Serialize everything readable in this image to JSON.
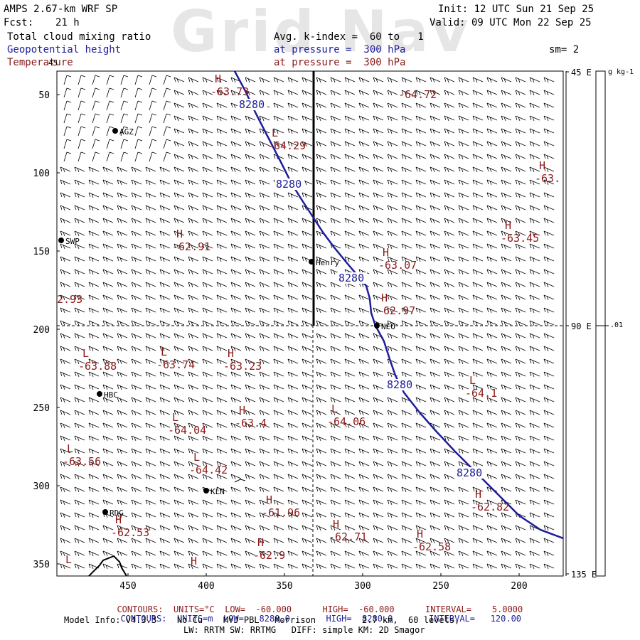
{
  "header": {
    "watermark": "Grid Nav",
    "model": "AMPS 2.67-km WRF SP",
    "init": "Init: 12 UTC Sun 21 Sep 25",
    "fcst_label": "Fcst:",
    "fcst_value": "21 h",
    "valid": "Valid: 09 UTC Mon 22 Sep 25",
    "field1": "Total cloud mixing ratio",
    "avg": "Avg. k-index =  60 to   1",
    "field2": "Geopotential height",
    "pressure1": "at pressure =  300 hPa",
    "sm": "sm= 2",
    "field3": "Temperature",
    "pressure2": "at pressure =  300 hPa"
  },
  "axes": {
    "y_ticks": [
      {
        "label": "50",
        "v": 50
      },
      {
        "label": "100",
        "v": 100
      },
      {
        "label": "150",
        "v": 150
      },
      {
        "label": "200",
        "v": 200
      },
      {
        "label": "250",
        "v": 250
      },
      {
        "label": "300",
        "v": 300
      },
      {
        "label": "350",
        "v": 350
      }
    ],
    "x_ticks": [
      {
        "label": "450",
        "v": 450
      },
      {
        "label": "400",
        "v": 400
      },
      {
        "label": "350",
        "v": 350
      },
      {
        "label": "300",
        "v": 300
      },
      {
        "label": "250",
        "v": 250
      },
      {
        "label": "200",
        "v": 200
      }
    ],
    "right_labels": [
      "45 E",
      "90 E",
      "135 E"
    ],
    "colorbar_unit": "g kg-1",
    "colorbar_tick": ".01",
    "corner_label": "45"
  },
  "stations": [
    "AGZ",
    "SWP",
    "Henry",
    "NEO",
    "HBC",
    "KLN",
    "RDG"
  ],
  "temp_labels": [
    {
      "hl": "H",
      "val": "-63.73"
    },
    {
      "hl": "",
      "val": "-64.72"
    },
    {
      "hl": "L",
      "val": "-64.29"
    },
    {
      "hl": "H",
      "val": "-63."
    },
    {
      "hl": "H",
      "val": "-63.45"
    },
    {
      "hl": "H",
      "val": "-62.91"
    },
    {
      "hl": "H",
      "val": "-63.07"
    },
    {
      "hl": "",
      "val": "2.93"
    },
    {
      "hl": "H",
      "val": "-62.97"
    },
    {
      "hl": "L",
      "val": "-63.88"
    },
    {
      "hl": "L",
      "val": "-63.74"
    },
    {
      "hl": "H",
      "val": "-63.23"
    },
    {
      "hl": "L",
      "val": "-64.1"
    },
    {
      "hl": "L",
      "val": "-64.04"
    },
    {
      "hl": "H",
      "val": "-63.4"
    },
    {
      "hl": "L",
      "val": "-64.06"
    },
    {
      "hl": "L",
      "val": "-63.56"
    },
    {
      "hl": "L",
      "val": "-64.42"
    },
    {
      "hl": "H",
      "val": "-62.82"
    },
    {
      "hl": "H",
      "val": "-61.96"
    },
    {
      "hl": "H",
      "val": "-62.53"
    },
    {
      "hl": "H",
      "val": "-62.71"
    },
    {
      "hl": "H",
      "val": "-62.58"
    },
    {
      "hl": "H",
      "val": "-62.9"
    },
    {
      "hl": "L",
      "val": ""
    },
    {
      "hl": "H",
      "val": ""
    }
  ],
  "height_labels": [
    "8280",
    "8280",
    "8280",
    "8280",
    "8280"
  ],
  "footer": {
    "contours_red": {
      "label": "CONTOURS:",
      "units": "UNITS=°C",
      "low": "LOW=  -60.000",
      "high": "HIGH=  -60.000",
      "interval": "INTERVAL=    5.0000"
    },
    "contours_blue": {
      "label": "CONTOURS:",
      "units": "UNITS=m",
      "low": "LOW=   8280.0",
      "high": "HIGH=  8280.0",
      "interval": "INTERVAL=   120.00"
    },
    "model_info": "Model Info: V4.3.3    No Cu    MYJ PBL   Morrison         2.7 km,  60 levels,",
    "model_info2": "LW: RRTM SW: RRTMG   DIFF: simple KM: 2D Smagor"
  },
  "colors": {
    "temperature": "#8b1a1a",
    "height": "#1e1e9a",
    "map": "#000000"
  }
}
